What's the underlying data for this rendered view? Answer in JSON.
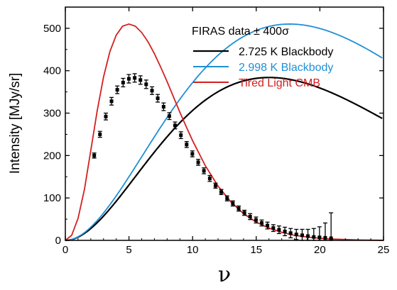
{
  "chart_data": {
    "type": "line",
    "title": "",
    "xlabel": "ν",
    "ylabel": "Intensity [MJy/sr]",
    "xlim": [
      0,
      25
    ],
    "ylim": [
      0,
      550
    ],
    "xticks": [
      0,
      5,
      10,
      15,
      20,
      25
    ],
    "yticks": [
      0,
      100,
      200,
      300,
      400,
      500
    ],
    "grid": false,
    "legend": {
      "placement": "top-right",
      "header": "FIRAS data ± 400σ"
    },
    "series": [
      {
        "name": "2.725 K Blackbody",
        "color": "#000000",
        "kind": "blackbody",
        "temperature_K": 2.725,
        "peak_value": 384
      },
      {
        "name": "2.998 K Blackbody",
        "color": "#1f8fd6",
        "kind": "blackbody",
        "temperature_K": 2.998,
        "peak_value": 510
      },
      {
        "name": "Tired Light CMB",
        "color": "#d42020",
        "kind": "curve",
        "peak_value": 510,
        "x": [
          0,
          0.5,
          1,
          1.5,
          2,
          2.5,
          3,
          3.5,
          4,
          4.5,
          5,
          5.5,
          6,
          6.5,
          7,
          7.5,
          8,
          8.5,
          9,
          9.5,
          10,
          11,
          12,
          13,
          14,
          15,
          16,
          17,
          18,
          19,
          20,
          21,
          22,
          23,
          24,
          25
        ],
        "y": [
          0,
          12,
          52,
          120,
          212,
          305,
          385,
          445,
          484,
          505,
          510,
          505,
          490,
          468,
          440,
          408,
          374,
          338,
          302,
          268,
          235,
          176,
          128,
          91,
          63,
          43,
          29,
          19,
          12,
          8,
          5,
          3,
          2,
          1,
          0.5,
          0.2
        ]
      }
    ],
    "data_points": {
      "name": "FIRAS data",
      "color": "#000000",
      "x": [
        2.27,
        2.72,
        3.18,
        3.63,
        4.08,
        4.54,
        4.99,
        5.45,
        5.9,
        6.35,
        6.81,
        7.26,
        7.72,
        8.17,
        8.62,
        9.08,
        9.53,
        9.98,
        10.44,
        10.89,
        11.35,
        11.8,
        12.25,
        12.71,
        13.16,
        13.62,
        14.07,
        14.52,
        14.98,
        15.43,
        15.88,
        16.34,
        16.79,
        17.25,
        17.7,
        18.15,
        18.61,
        19.06,
        19.52,
        19.97,
        20.42,
        20.88
      ],
      "y": [
        200,
        250,
        292,
        328,
        355,
        372,
        381,
        383,
        378,
        368,
        353,
        335,
        315,
        293,
        271,
        248,
        226,
        204,
        184,
        164,
        146,
        129,
        114,
        99,
        87,
        75,
        65,
        56,
        48,
        41,
        35,
        29,
        25,
        21,
        17,
        14,
        12,
        10,
        8,
        7,
        6,
        5
      ],
      "err": [
        6,
        7,
        8,
        9,
        9,
        10,
        10,
        10,
        10,
        10,
        9,
        9,
        9,
        8,
        8,
        8,
        7,
        7,
        7,
        7,
        7,
        6,
        6,
        6,
        6,
        6,
        6,
        7,
        7,
        7,
        8,
        8,
        9,
        10,
        11,
        12,
        14,
        16,
        20,
        25,
        35,
        60
      ]
    }
  }
}
